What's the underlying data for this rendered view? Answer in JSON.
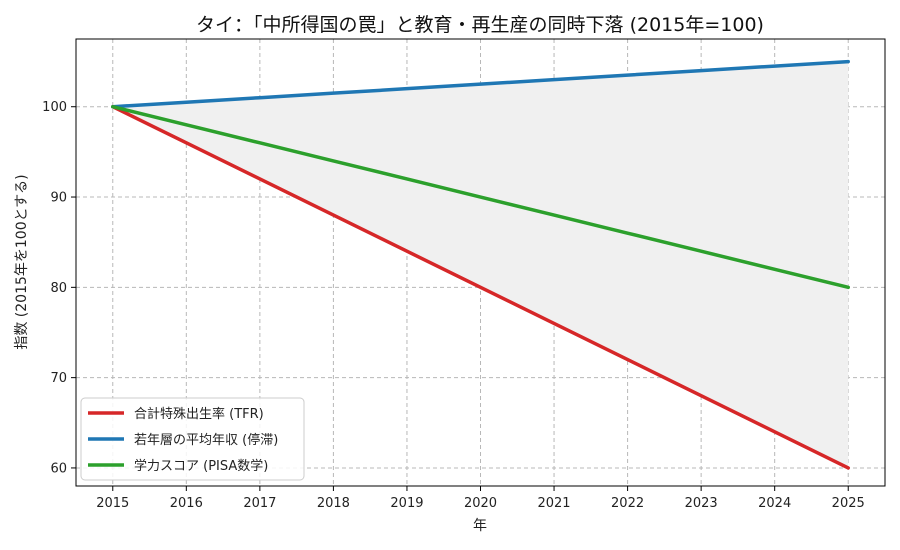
{
  "chart_data": {
    "type": "line",
    "title": "タイ：「中所得国の罠」と教育・再生産の同時下落 (2015年=100)",
    "xlabel": "年",
    "ylabel": "指数 (2015年を100とする)",
    "x": [
      2015,
      2016,
      2017,
      2018,
      2019,
      2020,
      2021,
      2022,
      2023,
      2024,
      2025
    ],
    "xlim": [
      2014.5,
      2025.5
    ],
    "ylim": [
      58,
      107.5
    ],
    "yticks": [
      60,
      70,
      80,
      90,
      100
    ],
    "grid": true,
    "legend_position": "lower-left",
    "shaded_band": {
      "between": [
        "合計特殊出生率 (TFR)",
        "若年層の平均年収 (停滞)"
      ],
      "color": "#f0f0f0"
    },
    "series": [
      {
        "name": "合計特殊出生率 (TFR)",
        "color": "#d62728",
        "values": [
          100,
          96,
          92,
          88,
          84,
          80,
          76,
          72,
          68,
          64,
          60
        ]
      },
      {
        "name": "若年層の平均年収 (停滞)",
        "color": "#1f77b4",
        "values": [
          100,
          100.5,
          101,
          101.5,
          102,
          102.5,
          103,
          103.5,
          104,
          104.5,
          105
        ]
      },
      {
        "name": "学力スコア (PISA数学)",
        "color": "#2ca02c",
        "values": [
          100,
          98,
          96,
          94,
          92,
          90,
          88,
          86,
          84,
          82,
          80
        ]
      }
    ]
  }
}
